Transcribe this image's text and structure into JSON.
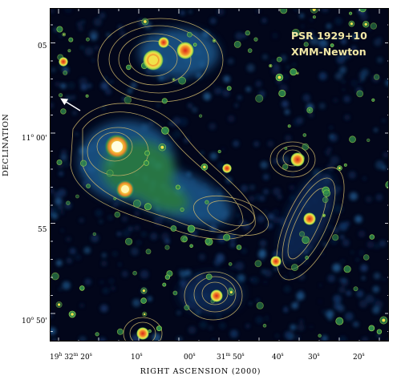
{
  "image": {
    "title_line1": "PSR 1929+10",
    "title_line2": "XMM-Newton",
    "title_color": "#f3e8a6",
    "colormap": [
      "#02061a",
      "#0f2b57",
      "#1e5a8f",
      "#2f8a4d",
      "#8fcf4a",
      "#f2e24a",
      "#f08a2a",
      "#d8261a"
    ],
    "contour_color": "#c9b36a",
    "arrow_color": "#ffffff"
  },
  "axes": {
    "ylabel": "DECLINATION",
    "xlabel": "RIGHT ASCENSION (2000)",
    "y_ticks": [
      {
        "deg": "",
        "min": "05"
      },
      {
        "deg": "11",
        "min": "00'"
      },
      {
        "deg": "",
        "min": "55"
      },
      {
        "deg": "10",
        "min": "50'"
      }
    ],
    "x_ticks": [
      {
        "h": "19",
        "m": "32",
        "s": "20"
      },
      {
        "s": "10"
      },
      {
        "s": "00"
      },
      {
        "m": "31",
        "s": "50"
      },
      {
        "s": "40"
      },
      {
        "s": "30"
      },
      {
        "s": "20"
      }
    ]
  }
}
